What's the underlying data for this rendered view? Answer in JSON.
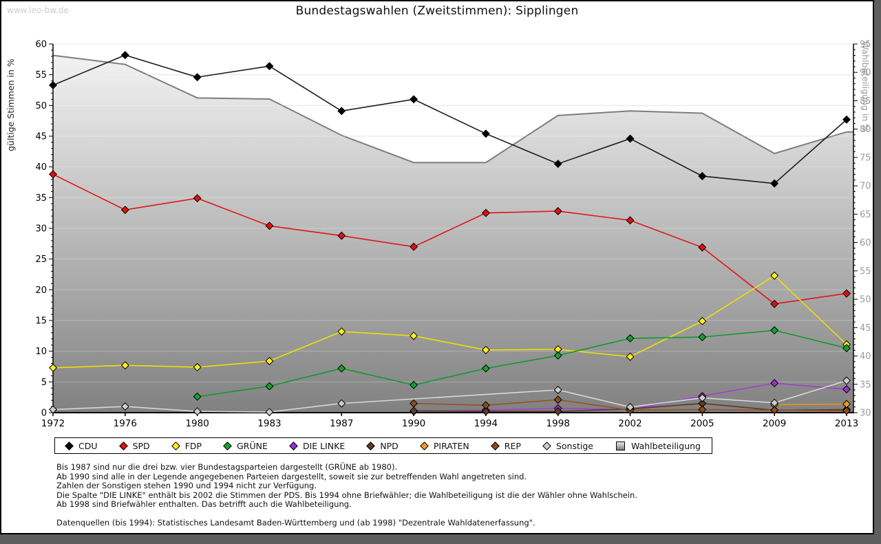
{
  "page": {
    "watermark": "www.leo-bw.de",
    "title": "Bundestagswahlen (Zweitstimmen): Sipplingen"
  },
  "chart_data": {
    "type": "line",
    "title": "Bundestagswahlen (Zweitstimmen): Sipplingen",
    "x": [
      1972,
      1976,
      1980,
      1983,
      1987,
      1990,
      1994,
      1998,
      2002,
      2005,
      2009,
      2013
    ],
    "ylabel_left": "gültige Stimmen in %",
    "ylabel_right": "Wahlbeteiligung in %",
    "ylim_left": [
      0,
      60
    ],
    "ylim_right": [
      30,
      95
    ],
    "ytick_step": 5,
    "grid": true,
    "legend_position": "bottom",
    "series": [
      {
        "name": "CDU",
        "axis": "left",
        "color": "#1a1a1a",
        "marker_fill": "#000000",
        "marker": "diamond",
        "values": [
          53.3,
          58.2,
          54.6,
          56.4,
          49.1,
          51.0,
          45.4,
          40.5,
          44.6,
          38.5,
          37.3,
          47.7
        ]
      },
      {
        "name": "SPD",
        "axis": "left",
        "color": "#e01515",
        "marker_fill": "#dd1111",
        "marker": "diamond",
        "values": [
          38.8,
          33.0,
          34.9,
          30.4,
          28.8,
          27.0,
          32.5,
          32.8,
          31.3,
          26.9,
          17.7,
          19.4
        ]
      },
      {
        "name": "FDP",
        "axis": "left",
        "color": "#f0e000",
        "marker_fill": "#ffee22",
        "marker": "diamond",
        "values": [
          7.3,
          7.7,
          7.4,
          8.4,
          13.2,
          12.5,
          10.2,
          10.3,
          9.1,
          14.9,
          22.3,
          11.1
        ]
      },
      {
        "name": "GRÜNE",
        "axis": "left",
        "color": "#119a2c",
        "marker_fill": "#12a22e",
        "marker": "diamond",
        "values": [
          null,
          null,
          2.6,
          4.3,
          7.2,
          4.5,
          7.2,
          9.3,
          12.1,
          12.3,
          13.4,
          10.5
        ]
      },
      {
        "name": "DIE LINKE",
        "axis": "left",
        "color": "#a43bd4",
        "marker_fill": "#9b30c8",
        "marker": "diamond",
        "values": [
          null,
          null,
          null,
          null,
          null,
          0.2,
          0.4,
          0.7,
          0.5,
          2.7,
          4.8,
          3.8
        ]
      },
      {
        "name": "NPD",
        "axis": "left",
        "color": "#5a3a22",
        "marker_fill": "#5e3c24",
        "marker": "diamond",
        "values": [
          null,
          null,
          null,
          null,
          null,
          0.3,
          0.2,
          0.2,
          0.6,
          1.5,
          0.4,
          0.5
        ]
      },
      {
        "name": "PIRATEN",
        "axis": "left",
        "color": "#ef9418",
        "marker_fill": "#f09a1e",
        "marker": "diamond",
        "values": [
          null,
          null,
          null,
          null,
          null,
          null,
          null,
          null,
          null,
          null,
          1.3,
          1.4
        ]
      },
      {
        "name": "REP",
        "axis": "left",
        "color": "#99511f",
        "marker_fill": "#8f4a1c",
        "marker": "diamond",
        "values": [
          null,
          null,
          null,
          null,
          null,
          1.5,
          1.2,
          2.1,
          0.4,
          0.5,
          0.4,
          0.3
        ]
      },
      {
        "name": "Sonstige",
        "axis": "left",
        "color": "#d8d8d8",
        "marker_fill": "#cccccc",
        "marker": "diamond",
        "values": [
          0.5,
          1.0,
          0.2,
          0.1,
          1.5,
          null,
          null,
          3.7,
          0.9,
          2.4,
          1.6,
          5.2
        ]
      },
      {
        "name": "Wahlbeteiligung",
        "axis": "right",
        "color": "#7d7d7d",
        "marker": "square",
        "area": true,
        "values": [
          93.0,
          91.4,
          85.5,
          85.3,
          78.9,
          74.1,
          74.1,
          82.4,
          83.2,
          82.8,
          75.7,
          79.5
        ]
      }
    ]
  },
  "footnotes": [
    "Bis 1987 sind nur die drei bzw. vier Bundestagsparteien dargestellt (GRÜNE ab 1980).",
    "Ab 1990 sind alle in der Legende angegebenen Parteien dargestellt, soweit sie zur betreffenden Wahl angetreten sind.",
    "Zahlen der Sonstigen stehen 1990 und 1994 nicht zur Verfügung.",
    "Die Spalte \"DIE LINKE\" enthält bis 2002 die Stimmen der PDS. Bis 1994 ohne Briefwähler; die Wahlbeteiligung ist die der Wähler ohne Wahlschein.",
    "Ab 1998 sind Briefwähler enthalten. Das betrifft auch die Wahlbeteiligung.",
    "",
    "Datenquellen (bis 1994): Statistisches Landesamt Baden-Württemberg und (ab 1998) \"Dezentrale Wahldatenerfassung\"."
  ]
}
